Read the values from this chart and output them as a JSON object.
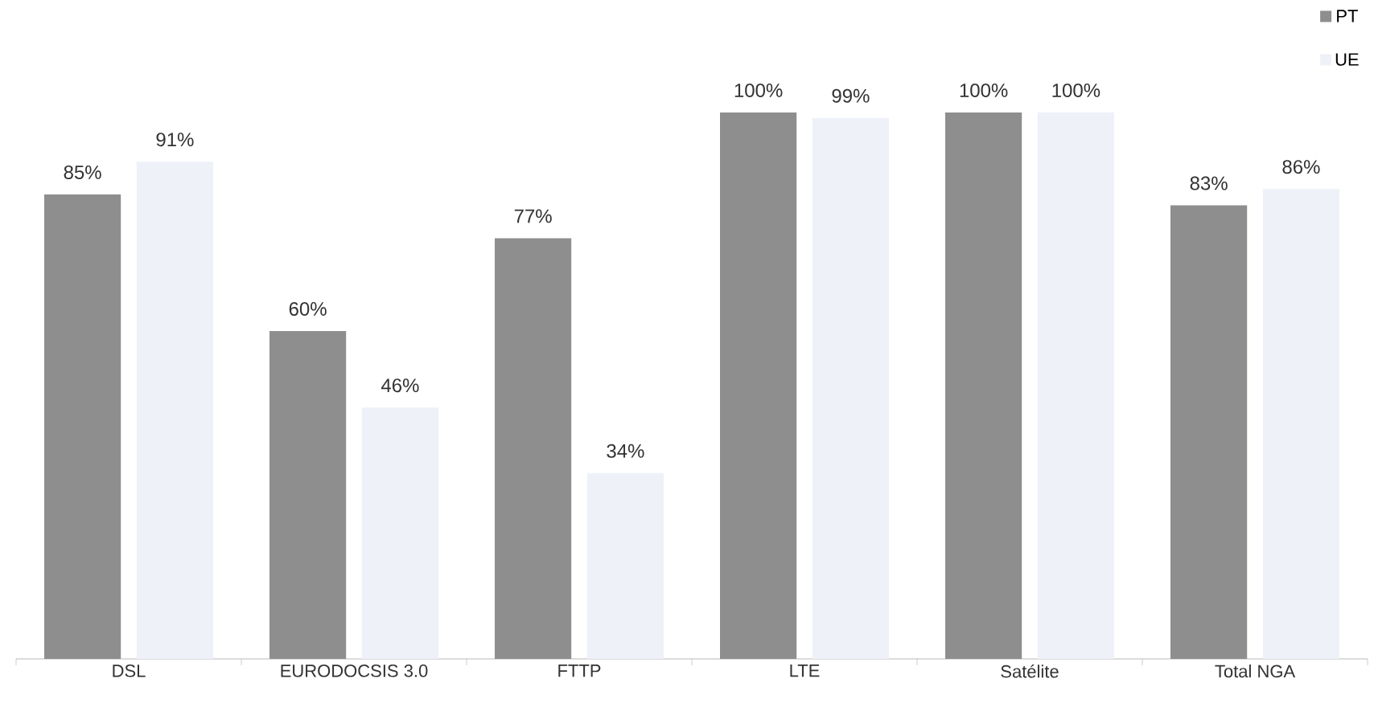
{
  "chart_data": {
    "type": "bar",
    "categories": [
      "DSL",
      "EURODOCSIS 3.0",
      "FTTP",
      "LTE",
      "Satélite",
      "Total NGA"
    ],
    "series": [
      {
        "name": "PT",
        "color": "#8e8e8e",
        "values": [
          85,
          60,
          77,
          100,
          100,
          83
        ],
        "value_labels": [
          "85%",
          "60%",
          "77%",
          "100%",
          "100%",
          "83%"
        ]
      },
      {
        "name": "UE",
        "color": "#eef1f7",
        "values": [
          91,
          46,
          34,
          99,
          100,
          86
        ],
        "value_labels": [
          "91%",
          "46%",
          "34%",
          "99%",
          "100%",
          "86%"
        ]
      }
    ],
    "legend": "top right"
  }
}
